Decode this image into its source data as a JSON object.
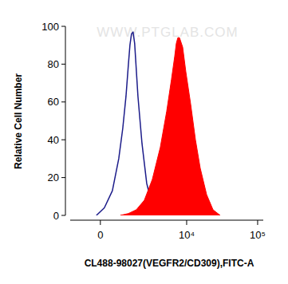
{
  "chart_data": {
    "type": "line",
    "watermark": "WWW.PTGLAB.COM",
    "x_label": "CL488-98027(VEGFR2/CD309),FITC-A",
    "y_label": "Relative Cell Number",
    "log": "x",
    "xlim": [
      -1400,
      120000
    ],
    "xticks": [
      0,
      {
        "value": 10000,
        "label": "10⁴"
      },
      {
        "value": 100000,
        "label": "10⁵"
      }
    ],
    "ylim": [
      0,
      100
    ],
    "yticks": [
      0,
      20,
      40,
      60,
      80,
      100
    ],
    "grid": false,
    "series": [
      {
        "type": "line",
        "color": "#1c1c8a",
        "x": [
          -159,
          159,
          489,
          775,
          970,
          1140,
          1275,
          1363,
          1458,
          1557,
          1661,
          1891,
          2204,
          2616,
          3185,
          3963,
          4789
        ],
        "values": [
          0,
          4,
          13,
          30,
          46,
          63,
          80,
          90,
          96,
          97,
          91,
          63,
          38,
          17,
          5,
          1,
          0
        ]
      },
      {
        "type": "area",
        "color": "#ff0000",
        "x": [
          851,
          1275,
          1775,
          2398,
          3185,
          4185,
          5182,
          6079,
          6754,
          7122,
          7503,
          7908,
          8780,
          9738,
          11384,
          13324,
          15559,
          19145,
          23553,
          29718
        ],
        "values": [
          0,
          1,
          3,
          8,
          19,
          36,
          55,
          72,
          84,
          91,
          94,
          94,
          89,
          76,
          59,
          40,
          25,
          11,
          3,
          0
        ]
      }
    ]
  }
}
